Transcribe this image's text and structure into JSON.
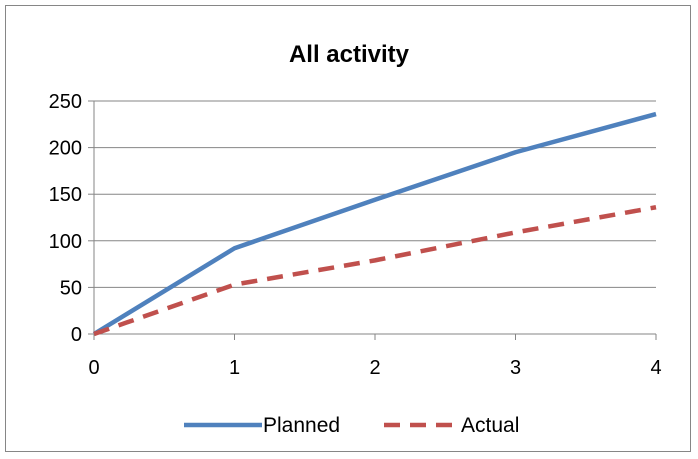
{
  "chart_data": {
    "type": "line",
    "title": "All activity",
    "xlabel": "",
    "ylabel": "",
    "x": [
      0,
      1,
      2,
      3,
      4
    ],
    "xlim": [
      0,
      4
    ],
    "ylim": [
      0,
      250
    ],
    "xticks": [
      "0",
      "1",
      "2",
      "3",
      "4"
    ],
    "yticks": [
      "0",
      "50",
      "100",
      "150",
      "200",
      "250"
    ],
    "grid": "horizontal",
    "legend_position": "bottom",
    "series": [
      {
        "name": "Planned",
        "values": [
          0,
          92,
          144,
          195,
          236
        ],
        "color": "#4F81BD",
        "style": "solid"
      },
      {
        "name": "Actual",
        "values": [
          0,
          53,
          79,
          109,
          136
        ],
        "color": "#C0504D",
        "style": "dashed"
      }
    ]
  }
}
